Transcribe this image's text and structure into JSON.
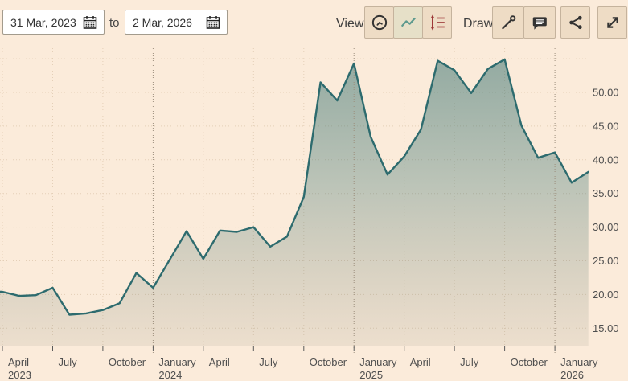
{
  "toolbar": {
    "date_from": "31 Mar, 2023",
    "to_label": "to",
    "date_to": "2 Mar, 2026",
    "view_label": "View",
    "draw_label": "Draw",
    "view_buttons": [
      {
        "icon": "clock-icon",
        "selected": false
      },
      {
        "icon": "line-chart-icon",
        "selected": true
      },
      {
        "icon": "y-axis-scale-icon",
        "selected": false
      }
    ],
    "draw_buttons": [
      {
        "icon": "trendline-tool-icon"
      },
      {
        "icon": "annotation-icon"
      }
    ],
    "share_icon": "share-icon",
    "fullscreen_icon": "fullscreen-expand-icon"
  },
  "chart_data": {
    "type": "area",
    "title": "",
    "x_unit": "month",
    "x": [
      "Apr 2023",
      "May 2023",
      "Jun 2023",
      "Jul 2023",
      "Aug 2023",
      "Sep 2023",
      "Oct 2023",
      "Nov 2023",
      "Dec 2023",
      "Jan 2024",
      "Feb 2024",
      "Mar 2024",
      "Apr 2024",
      "May 2024",
      "Jun 2024",
      "Jul 2024",
      "Aug 2024",
      "Sep 2024",
      "Oct 2024",
      "Nov 2024",
      "Dec 2024",
      "Jan 2025",
      "Feb 2025",
      "Mar 2025",
      "Apr 2025",
      "May 2025",
      "Jun 2025",
      "Jul 2025",
      "Aug 2025",
      "Sep 2025",
      "Oct 2025",
      "Nov 2025",
      "Dec 2025",
      "Jan 2026",
      "Feb 2026",
      "Mar 2026"
    ],
    "values": [
      20.4,
      19.8,
      19.9,
      21.0,
      17.0,
      17.2,
      17.7,
      18.7,
      23.2,
      21.0,
      25.2,
      29.4,
      25.3,
      29.5,
      29.3,
      30.0,
      27.1,
      28.6,
      34.5,
      51.5,
      48.8,
      54.3,
      43.4,
      37.8,
      40.5,
      44.5,
      54.7,
      53.3,
      49.9,
      53.5,
      54.9,
      45.1,
      40.3,
      41.1,
      36.6,
      38.2
    ],
    "ylim": [
      13.5,
      56.5
    ],
    "grid": true,
    "legend": "none",
    "x_ticks": [
      {
        "index": 0,
        "label": "April",
        "year": "2023",
        "major": false
      },
      {
        "index": 3,
        "label": "July",
        "year": "",
        "major": false
      },
      {
        "index": 6,
        "label": "October",
        "year": "",
        "major": false
      },
      {
        "index": 9,
        "label": "January",
        "year": "2024",
        "major": true
      },
      {
        "index": 12,
        "label": "April",
        "year": "",
        "major": false
      },
      {
        "index": 15,
        "label": "July",
        "year": "",
        "major": false
      },
      {
        "index": 18,
        "label": "October",
        "year": "",
        "major": false
      },
      {
        "index": 21,
        "label": "January",
        "year": "2025",
        "major": true
      },
      {
        "index": 24,
        "label": "April",
        "year": "",
        "major": false
      },
      {
        "index": 27,
        "label": "July",
        "year": "",
        "major": false
      },
      {
        "index": 30,
        "label": "October",
        "year": "",
        "major": false
      },
      {
        "index": 33,
        "label": "January",
        "year": "2026",
        "major": true
      }
    ],
    "y_axis": {
      "grid_values": [
        55,
        50,
        45,
        40,
        35,
        30,
        25,
        20,
        15
      ],
      "ticks": [
        {
          "value": 50,
          "label": "50.00"
        },
        {
          "value": 45,
          "label": "45.00"
        },
        {
          "value": 40,
          "label": "40.00"
        },
        {
          "value": 35,
          "label": "35.00"
        },
        {
          "value": 30,
          "label": "30.00"
        },
        {
          "value": 25,
          "label": "25.00"
        },
        {
          "value": 20,
          "label": "20.00"
        },
        {
          "value": 15,
          "label": "15.00"
        }
      ]
    },
    "colors": {
      "background": "#fbebda",
      "line": "#2d6b6e",
      "fill_top": "rgba(45,107,106,0.50)",
      "fill_mid": "rgba(45,107,106,0.30)",
      "fill_bottom": "rgba(105,112,95,0.10)",
      "grid_minor": "#e4cfb7",
      "grid_major": "#9c8e7c",
      "tick": "#5a5a5a",
      "axis_label": "#4f4f4f"
    }
  }
}
